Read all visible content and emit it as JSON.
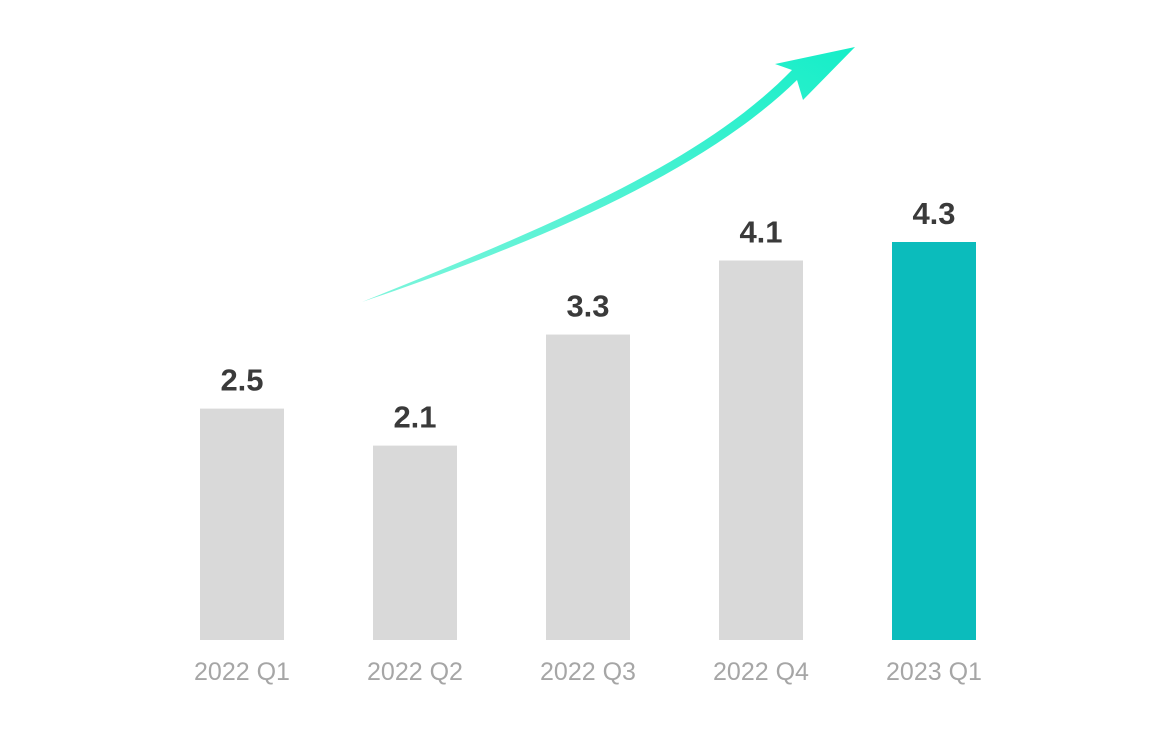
{
  "chart_data": {
    "type": "bar",
    "categories": [
      "2022 Q1",
      "2022 Q2",
      "2022 Q3",
      "2022 Q4",
      "2023 Q1"
    ],
    "values": [
      2.5,
      2.1,
      3.3,
      4.1,
      4.3
    ],
    "value_labels": [
      "2.5",
      "2.1",
      "3.3",
      "4.1",
      "4.3"
    ],
    "highlight_index": 4,
    "title": "",
    "xlabel": "",
    "ylabel": "",
    "ylim": [
      0,
      4.3
    ],
    "grid": false,
    "legend": "none",
    "trend_arrow": "up",
    "colors": {
      "bar": "#d9d9d9",
      "highlight": "#0bbcbc",
      "arrow": "#2ef0c9",
      "value_text": "#3a3a3a",
      "tick_text": "#a6a6a6"
    }
  }
}
